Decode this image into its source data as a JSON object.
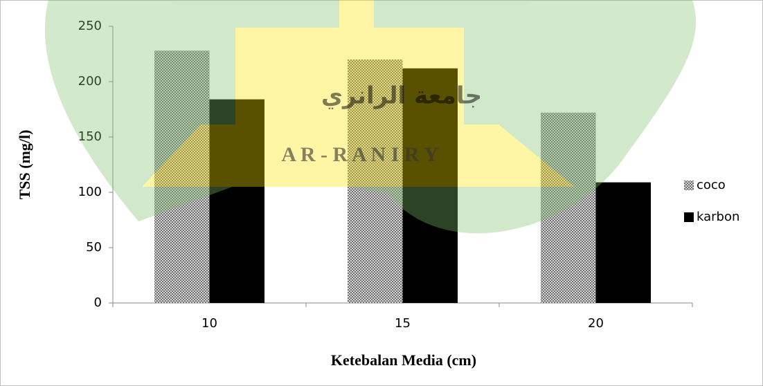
{
  "chart_data": {
    "type": "bar",
    "categories": [
      "10",
      "15",
      "20"
    ],
    "series": [
      {
        "name": "coco",
        "color": "#6e6e6e",
        "pattern": "checker",
        "values": [
          228,
          220,
          172
        ]
      },
      {
        "name": "karbon",
        "color": "#000000",
        "values": [
          184,
          212,
          109
        ]
      }
    ],
    "ylim": [
      0,
      250
    ],
    "yticks": [
      0,
      50,
      100,
      150,
      200,
      250
    ],
    "y_label": "TSS (mg/l)",
    "x_label": "Ketebalan Media (cm)",
    "legend": "right",
    "grid": false,
    "watermark": {
      "text": "A R - R A N I R Y",
      "arabic": "جامعة الرانري"
    }
  }
}
